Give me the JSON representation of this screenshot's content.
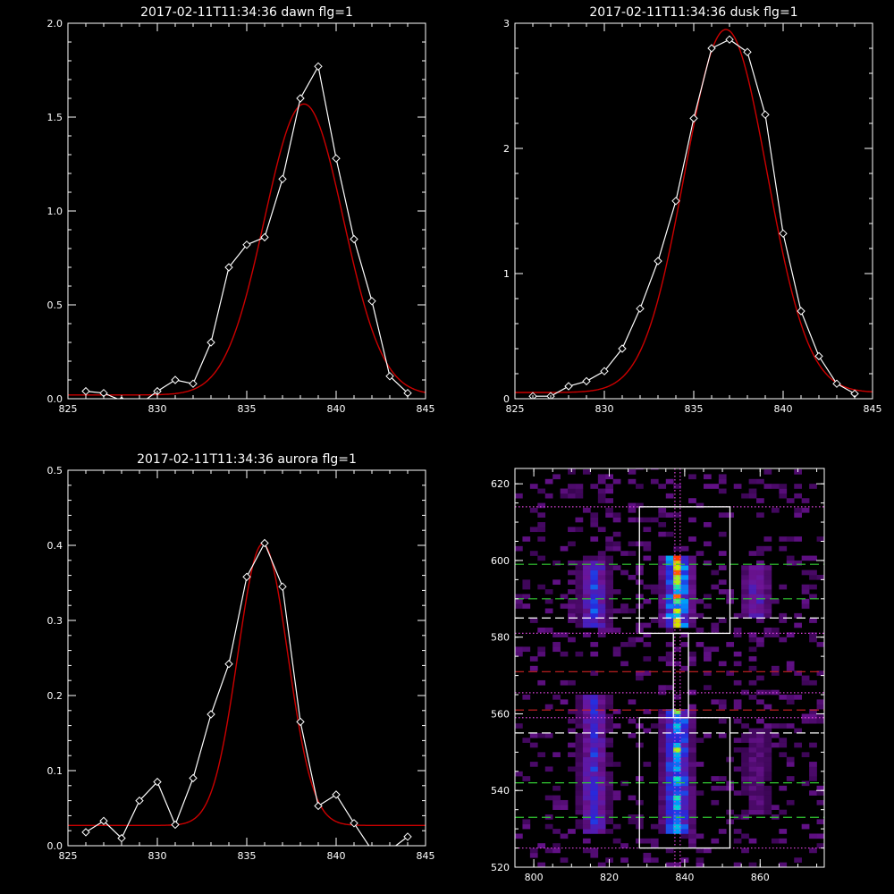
{
  "colors": {
    "background": "#000000",
    "data_line": "#ffffff",
    "fit_line": "#cc0000"
  },
  "chart_data": [
    {
      "id": "dawn",
      "type": "line",
      "title": "2017-02-11T11:34:36 dawn flg=1",
      "xlim": [
        825,
        845
      ],
      "ylim": [
        0,
        2.0
      ],
      "xticks": [
        825,
        830,
        835,
        840,
        845
      ],
      "yticks": [
        0.0,
        0.5,
        1.0,
        1.5,
        2.0
      ],
      "ytick_labels": [
        "0.0",
        "0.5",
        "1.0",
        "1.5",
        "2.0"
      ],
      "series": [
        {
          "x": [
            826,
            827,
            828,
            829,
            830,
            831,
            832,
            833,
            834,
            835,
            836,
            837,
            838,
            839,
            840,
            841,
            842,
            843,
            844
          ],
          "y": [
            0.04,
            0.03,
            -0.01,
            -0.03,
            0.04,
            0.1,
            0.08,
            0.3,
            0.7,
            0.82,
            0.86,
            1.17,
            1.6,
            1.77,
            1.28,
            0.85,
            0.52,
            0.12,
            0.03
          ],
          "marker": "diamond"
        },
        {
          "fit": {
            "amplitude": 1.55,
            "center": 838.2,
            "sigma": 2.2,
            "offset": 0.02
          }
        }
      ]
    },
    {
      "id": "dusk",
      "type": "line",
      "title": "2017-02-11T11:34:36 dusk flg=1",
      "xlim": [
        825,
        845
      ],
      "ylim": [
        0,
        3.0
      ],
      "xticks": [
        825,
        830,
        835,
        840,
        845
      ],
      "yticks": [
        0,
        1,
        2,
        3
      ],
      "ytick_labels": [
        "0",
        "1",
        "2",
        "3"
      ],
      "series": [
        {
          "x": [
            826,
            827,
            828,
            829,
            830,
            831,
            832,
            833,
            834,
            835,
            836,
            837,
            838,
            839,
            840,
            841,
            842,
            843,
            844
          ],
          "y": [
            0.02,
            0.02,
            0.1,
            0.14,
            0.22,
            0.4,
            0.72,
            1.1,
            1.58,
            2.24,
            2.8,
            2.87,
            2.77,
            2.27,
            1.32,
            0.7,
            0.34,
            0.12,
            0.04
          ],
          "marker": "diamond"
        },
        {
          "fit": {
            "amplitude": 2.9,
            "center": 836.8,
            "sigma": 2.3,
            "offset": 0.05
          }
        }
      ]
    },
    {
      "id": "aurora",
      "type": "line",
      "title": "2017-02-11T11:34:36 aurora flg=1",
      "xlim": [
        825,
        845
      ],
      "ylim": [
        0,
        0.5
      ],
      "xticks": [
        825,
        830,
        835,
        840,
        845
      ],
      "yticks": [
        0.0,
        0.1,
        0.2,
        0.3,
        0.4,
        0.5
      ],
      "ytick_labels": [
        "0.0",
        "0.1",
        "0.2",
        "0.3",
        "0.4",
        "0.5"
      ],
      "series": [
        {
          "x": [
            826,
            827,
            828,
            829,
            830,
            831,
            832,
            833,
            834,
            835,
            836,
            837,
            838,
            839,
            840,
            841,
            842,
            843,
            844
          ],
          "y": [
            0.018,
            0.033,
            0.01,
            0.06,
            0.085,
            0.028,
            0.09,
            0.175,
            0.242,
            0.358,
            0.403,
            0.345,
            0.165,
            0.053,
            0.068,
            0.03,
            -0.006,
            -0.006,
            0.012
          ],
          "marker": "diamond"
        },
        {
          "fit": {
            "amplitude": 0.375,
            "center": 835.9,
            "sigma": 1.4,
            "offset": 0.027
          }
        }
      ]
    },
    {
      "id": "spectrogram",
      "type": "heatmap",
      "title": "",
      "xlim": [
        795,
        877
      ],
      "ylim": [
        520,
        624
      ],
      "xticks": [
        800,
        820,
        840,
        860
      ],
      "yticks": [
        520,
        540,
        560,
        580,
        600,
        620
      ],
      "columns": [
        {
          "center": 816,
          "y_ranges": [
            [
              582,
              599,
              0.45
            ],
            [
              528,
              564,
              0.4
            ]
          ]
        },
        {
          "center": 838,
          "y_ranges": [
            [
              582,
              601,
              0.85
            ],
            [
              528,
              561,
              0.7
            ]
          ]
        },
        {
          "center": 859,
          "y_ranges": [
            [
              584,
              598,
              0.35
            ],
            [
              533,
              555,
              0.18
            ]
          ]
        }
      ],
      "boxes": [
        [
          828,
          581,
          852,
          614
        ],
        [
          828,
          525,
          852,
          559
        ],
        [
          837,
          559,
          841,
          581
        ]
      ],
      "vlines": [
        {
          "x": 837.4,
          "color": "#dd44dd",
          "style": "dotted"
        },
        {
          "x": 838.8,
          "color": "#dd44dd",
          "style": "dotted"
        }
      ],
      "hlines": [
        {
          "y": 614,
          "color": "#dd44dd",
          "style": "dotted"
        },
        {
          "y": 599,
          "color": "#33cc33",
          "style": "dashed"
        },
        {
          "y": 590,
          "color": "#33cc33",
          "style": "dashed"
        },
        {
          "y": 585,
          "color": "#ffffff",
          "style": "dashed"
        },
        {
          "y": 581,
          "color": "#dd44dd",
          "style": "dotted"
        },
        {
          "y": 571,
          "color": "#cc2222",
          "style": "dashed"
        },
        {
          "y": 565.5,
          "color": "#dd44dd",
          "style": "dotted"
        },
        {
          "y": 561,
          "color": "#cc2222",
          "style": "dashed"
        },
        {
          "y": 559,
          "color": "#dd44dd",
          "style": "dotted"
        },
        {
          "y": 555,
          "color": "#ffffff",
          "style": "dashed"
        },
        {
          "y": 542,
          "color": "#33cc33",
          "style": "dashed"
        },
        {
          "y": 533,
          "color": "#33cc33",
          "style": "dashed"
        },
        {
          "y": 525,
          "color": "#dd44dd",
          "style": "dotted"
        }
      ]
    }
  ]
}
